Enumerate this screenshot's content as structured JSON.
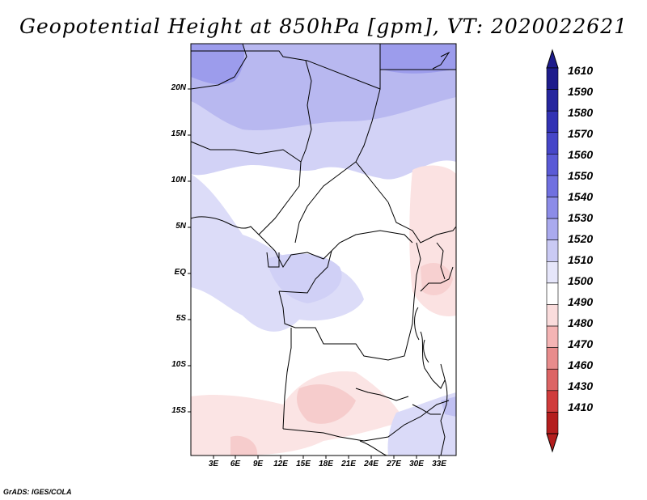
{
  "title": "Geopotential Height at 850hPa [gpm], VT: 2020022621",
  "footer": "GrADS: IGES/COLA",
  "map": {
    "lat_labels": [
      "20N",
      "15N",
      "10N",
      "5N",
      "EQ",
      "5S",
      "10S",
      "15S"
    ],
    "lon_labels": [
      "3E",
      "6E",
      "9E",
      "12E",
      "15E",
      "18E",
      "21E",
      "24E",
      "27E",
      "30E",
      "33E"
    ]
  },
  "colorbar": {
    "labels": [
      "1610",
      "1590",
      "1580",
      "1570",
      "1560",
      "1550",
      "1540",
      "1530",
      "1520",
      "1510",
      "1500",
      "1490",
      "1480",
      "1470",
      "1460",
      "1430",
      "1410"
    ],
    "colors": [
      "#1e1c8c",
      "#26269e",
      "#3232b4",
      "#4646c8",
      "#5a5ad6",
      "#7070e0",
      "#8c8ce8",
      "#aaaaee",
      "#cacaf4",
      "#e6e6fa",
      "#ffffff",
      "#fadcdc",
      "#f4b4b4",
      "#e88c8c",
      "#dc6464",
      "#d03c3c",
      "#b41e1e"
    ]
  }
}
